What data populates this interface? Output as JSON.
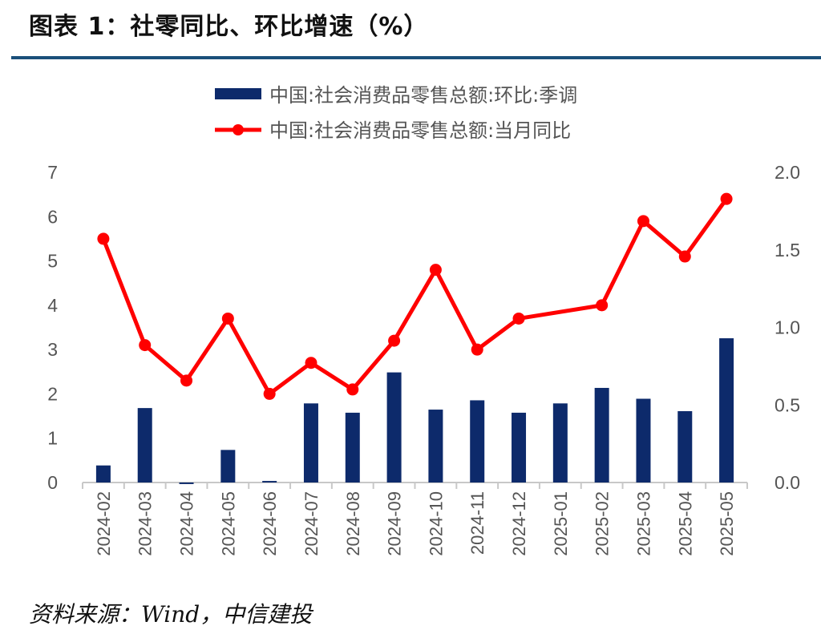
{
  "header": {
    "title": "图表 1：社零同比、环比增速（%）",
    "rule_color": "#1a4f7a"
  },
  "source": "资料来源：Wind，中信建投",
  "chart_data": {
    "type": "bar+line",
    "title": "图表 1：社零同比、环比增速（%）",
    "categories": [
      "2024-02",
      "2024-03",
      "2024-04",
      "2024-05",
      "2024-06",
      "2024-07",
      "2024-08",
      "2024-09",
      "2024-10",
      "2024-11",
      "2024-12",
      "2025-01",
      "2025-02",
      "2025-03",
      "2025-04",
      "2025-05"
    ],
    "series": [
      {
        "name": "中国:社会消费品零售总额:环比:季调",
        "type": "bar",
        "axis": "right",
        "color": "#0d2a6b",
        "values": [
          0.11,
          0.48,
          -0.01,
          0.21,
          0.01,
          0.51,
          0.45,
          0.71,
          0.47,
          0.53,
          0.45,
          0.51,
          0.61,
          0.54,
          0.46,
          0.93
        ]
      },
      {
        "name": "中国:社会消费品零售总额:当月同比",
        "type": "line",
        "axis": "left",
        "color": "#ff0000",
        "values": [
          5.5,
          3.1,
          2.3,
          3.7,
          2.0,
          2.7,
          2.1,
          3.2,
          4.8,
          3.0,
          3.7,
          null,
          4.0,
          5.9,
          5.1,
          6.4
        ]
      }
    ],
    "y_left": {
      "range": [
        0,
        7
      ],
      "ticks": [
        "0",
        "1",
        "2",
        "3",
        "4",
        "5",
        "6",
        "7"
      ]
    },
    "y_right": {
      "range": [
        0,
        2.0
      ],
      "ticks": [
        "0.0",
        "0.5",
        "1.0",
        "1.5",
        "2.0"
      ]
    },
    "legend_position": "top-center",
    "grid": false
  }
}
